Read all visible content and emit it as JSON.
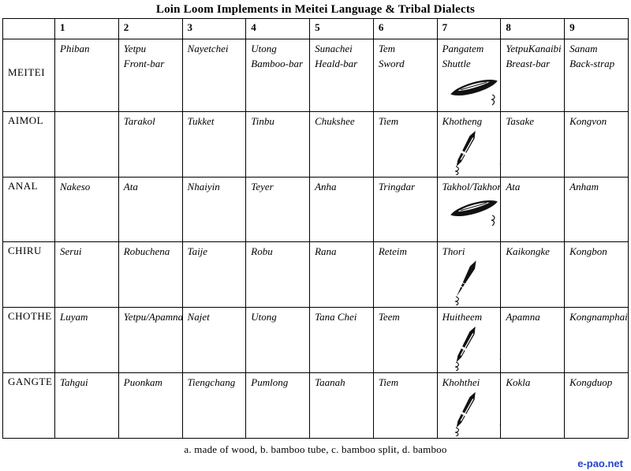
{
  "page": {
    "title": "Loin Loom Implements in Meitei Language & Tribal Dialects",
    "footnote": "a. made of wood, b. bamboo tube, c. bamboo split, d. bamboo",
    "watermark": "e-pao.net",
    "watermark_color": "#2244cc"
  },
  "table": {
    "corner_header": "",
    "column_headers": [
      "1",
      "2",
      "3",
      "4",
      "5",
      "6",
      "7",
      "8",
      "9"
    ],
    "drawing_column_index": 6,
    "rows": [
      {
        "language": "MEITEI",
        "cells": [
          [
            "Phiban"
          ],
          [
            "Yetpu",
            "Front-bar"
          ],
          [
            "Nayetchei"
          ],
          [
            "Utong",
            "Bamboo-bar"
          ],
          [
            "Sunachei",
            "Heald-bar"
          ],
          [
            "Tem",
            "Sword"
          ],
          [
            "Pangatem",
            "Shuttle"
          ],
          [
            "YetpuKanaibi",
            "Breast-bar"
          ],
          [
            "Sanam",
            "Back-strap"
          ]
        ],
        "drawing": {
          "icon": "wood-shuttle-icon",
          "label": "a"
        }
      },
      {
        "language": "AIMOL",
        "cells": [
          [],
          [
            "Tarakol"
          ],
          [
            "Tukket"
          ],
          [
            "Tinbu"
          ],
          [
            "Chukshee"
          ],
          [
            "Tiem"
          ],
          [
            "Khotheng"
          ],
          [
            "Tasake"
          ],
          [
            "Kongvon"
          ]
        ],
        "drawing": {
          "icon": "bamboo-tube-icon",
          "label": "b"
        }
      },
      {
        "language": "ANAL",
        "cells": [
          [
            "Nakeso"
          ],
          [
            "Ata"
          ],
          [
            "Nhaiyin"
          ],
          [
            "Teyer"
          ],
          [
            "Anha"
          ],
          [
            "Tringdar"
          ],
          [
            "Takhol/Takhor"
          ],
          [
            "Ata"
          ],
          [
            "Anham"
          ]
        ],
        "drawing": {
          "icon": "wood-shuttle-icon",
          "label": "a"
        }
      },
      {
        "language": "CHIRU",
        "cells": [
          [
            "Serui"
          ],
          [
            "Robuchena"
          ],
          [
            "Taije"
          ],
          [
            "Robu"
          ],
          [
            "Rana"
          ],
          [
            "Reteim"
          ],
          [
            "Thori"
          ],
          [
            "Kaikongke"
          ],
          [
            "Kongbon"
          ]
        ],
        "drawing": {
          "icon": "bamboo-split-icon",
          "label": "c"
        }
      },
      {
        "language": "CHOTHE",
        "cells": [
          [
            "Luyam"
          ],
          [
            "Yetpu/Apamna"
          ],
          [
            "Najet"
          ],
          [
            "Utong"
          ],
          [
            "Tana Chei"
          ],
          [
            "Teem"
          ],
          [
            "Huitheem"
          ],
          [
            "Apamna"
          ],
          [
            "Kongnamphai"
          ]
        ],
        "drawing": {
          "icon": "bamboo-tube-icon",
          "label": "b"
        }
      },
      {
        "language": "GANGTE",
        "cells": [
          [
            "Tahgui"
          ],
          [
            "Puonkam"
          ],
          [
            "Tiengchang"
          ],
          [
            "Pumlong"
          ],
          [
            "Taanah"
          ],
          [
            "Tiem"
          ],
          [
            "Khohthei"
          ],
          [
            "Kokla"
          ],
          [
            "Kongduop"
          ]
        ],
        "drawing": {
          "icon": "bamboo-tube-icon",
          "label": "b"
        }
      }
    ]
  }
}
